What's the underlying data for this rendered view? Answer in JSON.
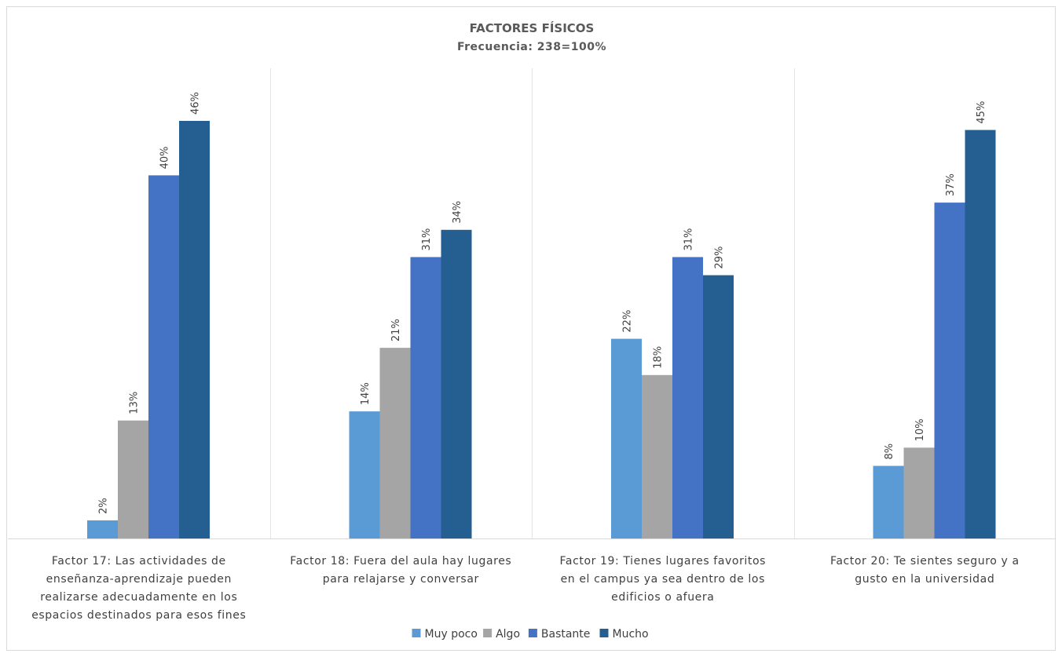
{
  "chart_data": {
    "type": "bar",
    "title": "FACTORES FÍSICOS",
    "subtitle": "Frecuencia: 238=100%",
    "xlabel": "",
    "ylabel": "",
    "ylim": [
      0,
      48
    ],
    "grid": false,
    "legend_position": "bottom",
    "categories": [
      [
        "Factor 17: Las actividades de",
        "enseñanza-aprendizaje pueden",
        "realizarse adecuadamente en los",
        "espacios destinados para esos fines"
      ],
      [
        "Factor 18: Fuera del aula hay lugares",
        "para relajarse y conversar"
      ],
      [
        "Factor 19: Tienes lugares favoritos",
        "en el campus ya sea dentro de los",
        "edificios o afuera"
      ],
      [
        "Factor 20: Te sientes seguro y a",
        "gusto en la universidad"
      ]
    ],
    "series": [
      {
        "name": "Muy poco",
        "color": "#5b9bd5",
        "values": [
          2,
          14,
          22,
          8
        ],
        "labels": [
          "2%",
          "14%",
          "22%",
          "8%"
        ]
      },
      {
        "name": "Algo",
        "color": "#a5a5a5",
        "values": [
          13,
          21,
          18,
          10
        ],
        "labels": [
          "13%",
          "21%",
          "18%",
          "10%"
        ]
      },
      {
        "name": "Bastante",
        "color": "#4472c4",
        "values": [
          40,
          31,
          31,
          37
        ],
        "labels": [
          "40%",
          "31%",
          "31%",
          "37%"
        ]
      },
      {
        "name": "Mucho",
        "color": "#255e91",
        "values": [
          46,
          34,
          29,
          45
        ],
        "labels": [
          "46%",
          "34%",
          "29%",
          "45%"
        ]
      }
    ]
  }
}
